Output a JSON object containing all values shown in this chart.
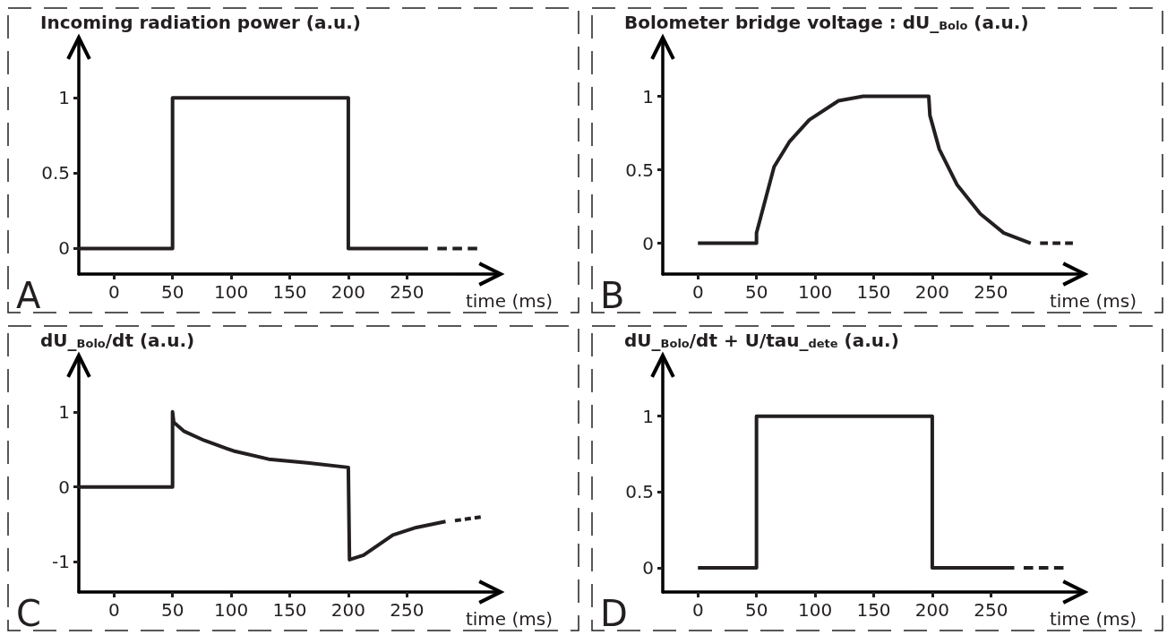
{
  "chart_data": [
    {
      "type": "line",
      "title": "Incoming radiation power (a.u.)",
      "xlabel": "time (ms)",
      "annotations": [
        "A"
      ],
      "xlim": [
        -30,
        330
      ],
      "xticks": [
        0,
        50,
        100,
        150,
        200,
        250
      ],
      "ylim": [
        -0.17,
        1.4
      ],
      "yticks": [
        0,
        0.5,
        1
      ],
      "series": [
        {
          "color": "#231f20",
          "x": [
            -30,
            50,
            50,
            200,
            200,
            268
          ],
          "values": [
            0,
            0,
            1,
            1,
            0,
            0
          ]
        },
        {
          "color": "#231f20",
          "line_style": "dashed",
          "x": [
            276,
            310
          ],
          "values": [
            0,
            0
          ]
        }
      ]
    },
    {
      "type": "line",
      "title": "Bolometer bridge voltage : dU_$_{Bolo}$ (a.u.)",
      "xlabel": "time (ms)",
      "annotations": [
        "B"
      ],
      "xlim": [
        -30,
        330
      ],
      "xticks": [
        0,
        50,
        100,
        150,
        200,
        250
      ],
      "ylim": [
        -0.21,
        1.4
      ],
      "yticks": [
        0,
        0.5,
        1
      ],
      "series": [
        {
          "color": "#231f20",
          "x": [
            0,
            50,
            50,
            58,
            65,
            78,
            95,
            120,
            141,
            197,
            198,
            206,
            221,
            241,
            261,
            284
          ],
          "values": [
            0,
            0,
            0.07,
            0.31,
            0.52,
            0.69,
            0.84,
            0.97,
            1,
            1,
            0.87,
            0.64,
            0.4,
            0.2,
            0.07,
            0
          ]
        },
        {
          "color": "#231f20",
          "line_style": "dashed",
          "x": [
            292,
            320
          ],
          "values": [
            0,
            0
          ]
        }
      ]
    },
    {
      "type": "line",
      "title": "dU_$_{Bolo}$/dt (a.u.)",
      "xlabel": "time (ms)",
      "annotations": [
        "C"
      ],
      "xlim": [
        -30,
        330
      ],
      "xticks": [
        0,
        50,
        100,
        150,
        200,
        250
      ],
      "ylim": [
        -1.4,
        1.75
      ],
      "yticks": [
        -1,
        0,
        1
      ],
      "series": [
        {
          "color": "#231f20",
          "x": [
            -30,
            50,
            50,
            51,
            60,
            77,
            102,
            132,
            165,
            200,
            201,
            213,
            238,
            258,
            283
          ],
          "values": [
            0,
            0,
            1,
            0.86,
            0.74,
            0.62,
            0.48,
            0.37,
            0.32,
            0.26,
            -0.97,
            -0.91,
            -0.64,
            -0.54,
            -0.46
          ]
        },
        {
          "color": "#231f20",
          "line_style": "dashed",
          "x": [
            291,
            313
          ],
          "values": [
            -0.45,
            -0.4
          ]
        }
      ]
    },
    {
      "type": "line",
      "title": "dU_$_{Bolo}$/dt + U/tau_$_{dete}$ (a.u.)",
      "xlabel": "time (ms)",
      "annotations": [
        "D"
      ],
      "xlim": [
        -30,
        330
      ],
      "xticks": [
        0,
        50,
        100,
        150,
        200,
        250
      ],
      "ylim": [
        -0.16,
        1.4
      ],
      "yticks": [
        0,
        0.5,
        1
      ],
      "series": [
        {
          "color": "#231f20",
          "x": [
            0,
            50,
            50,
            200,
            200,
            270
          ],
          "values": [
            0,
            0,
            1,
            1,
            0,
            0
          ]
        },
        {
          "color": "#231f20",
          "line_style": "dashed",
          "x": [
            278,
            312
          ],
          "values": [
            0,
            0
          ]
        }
      ]
    }
  ]
}
